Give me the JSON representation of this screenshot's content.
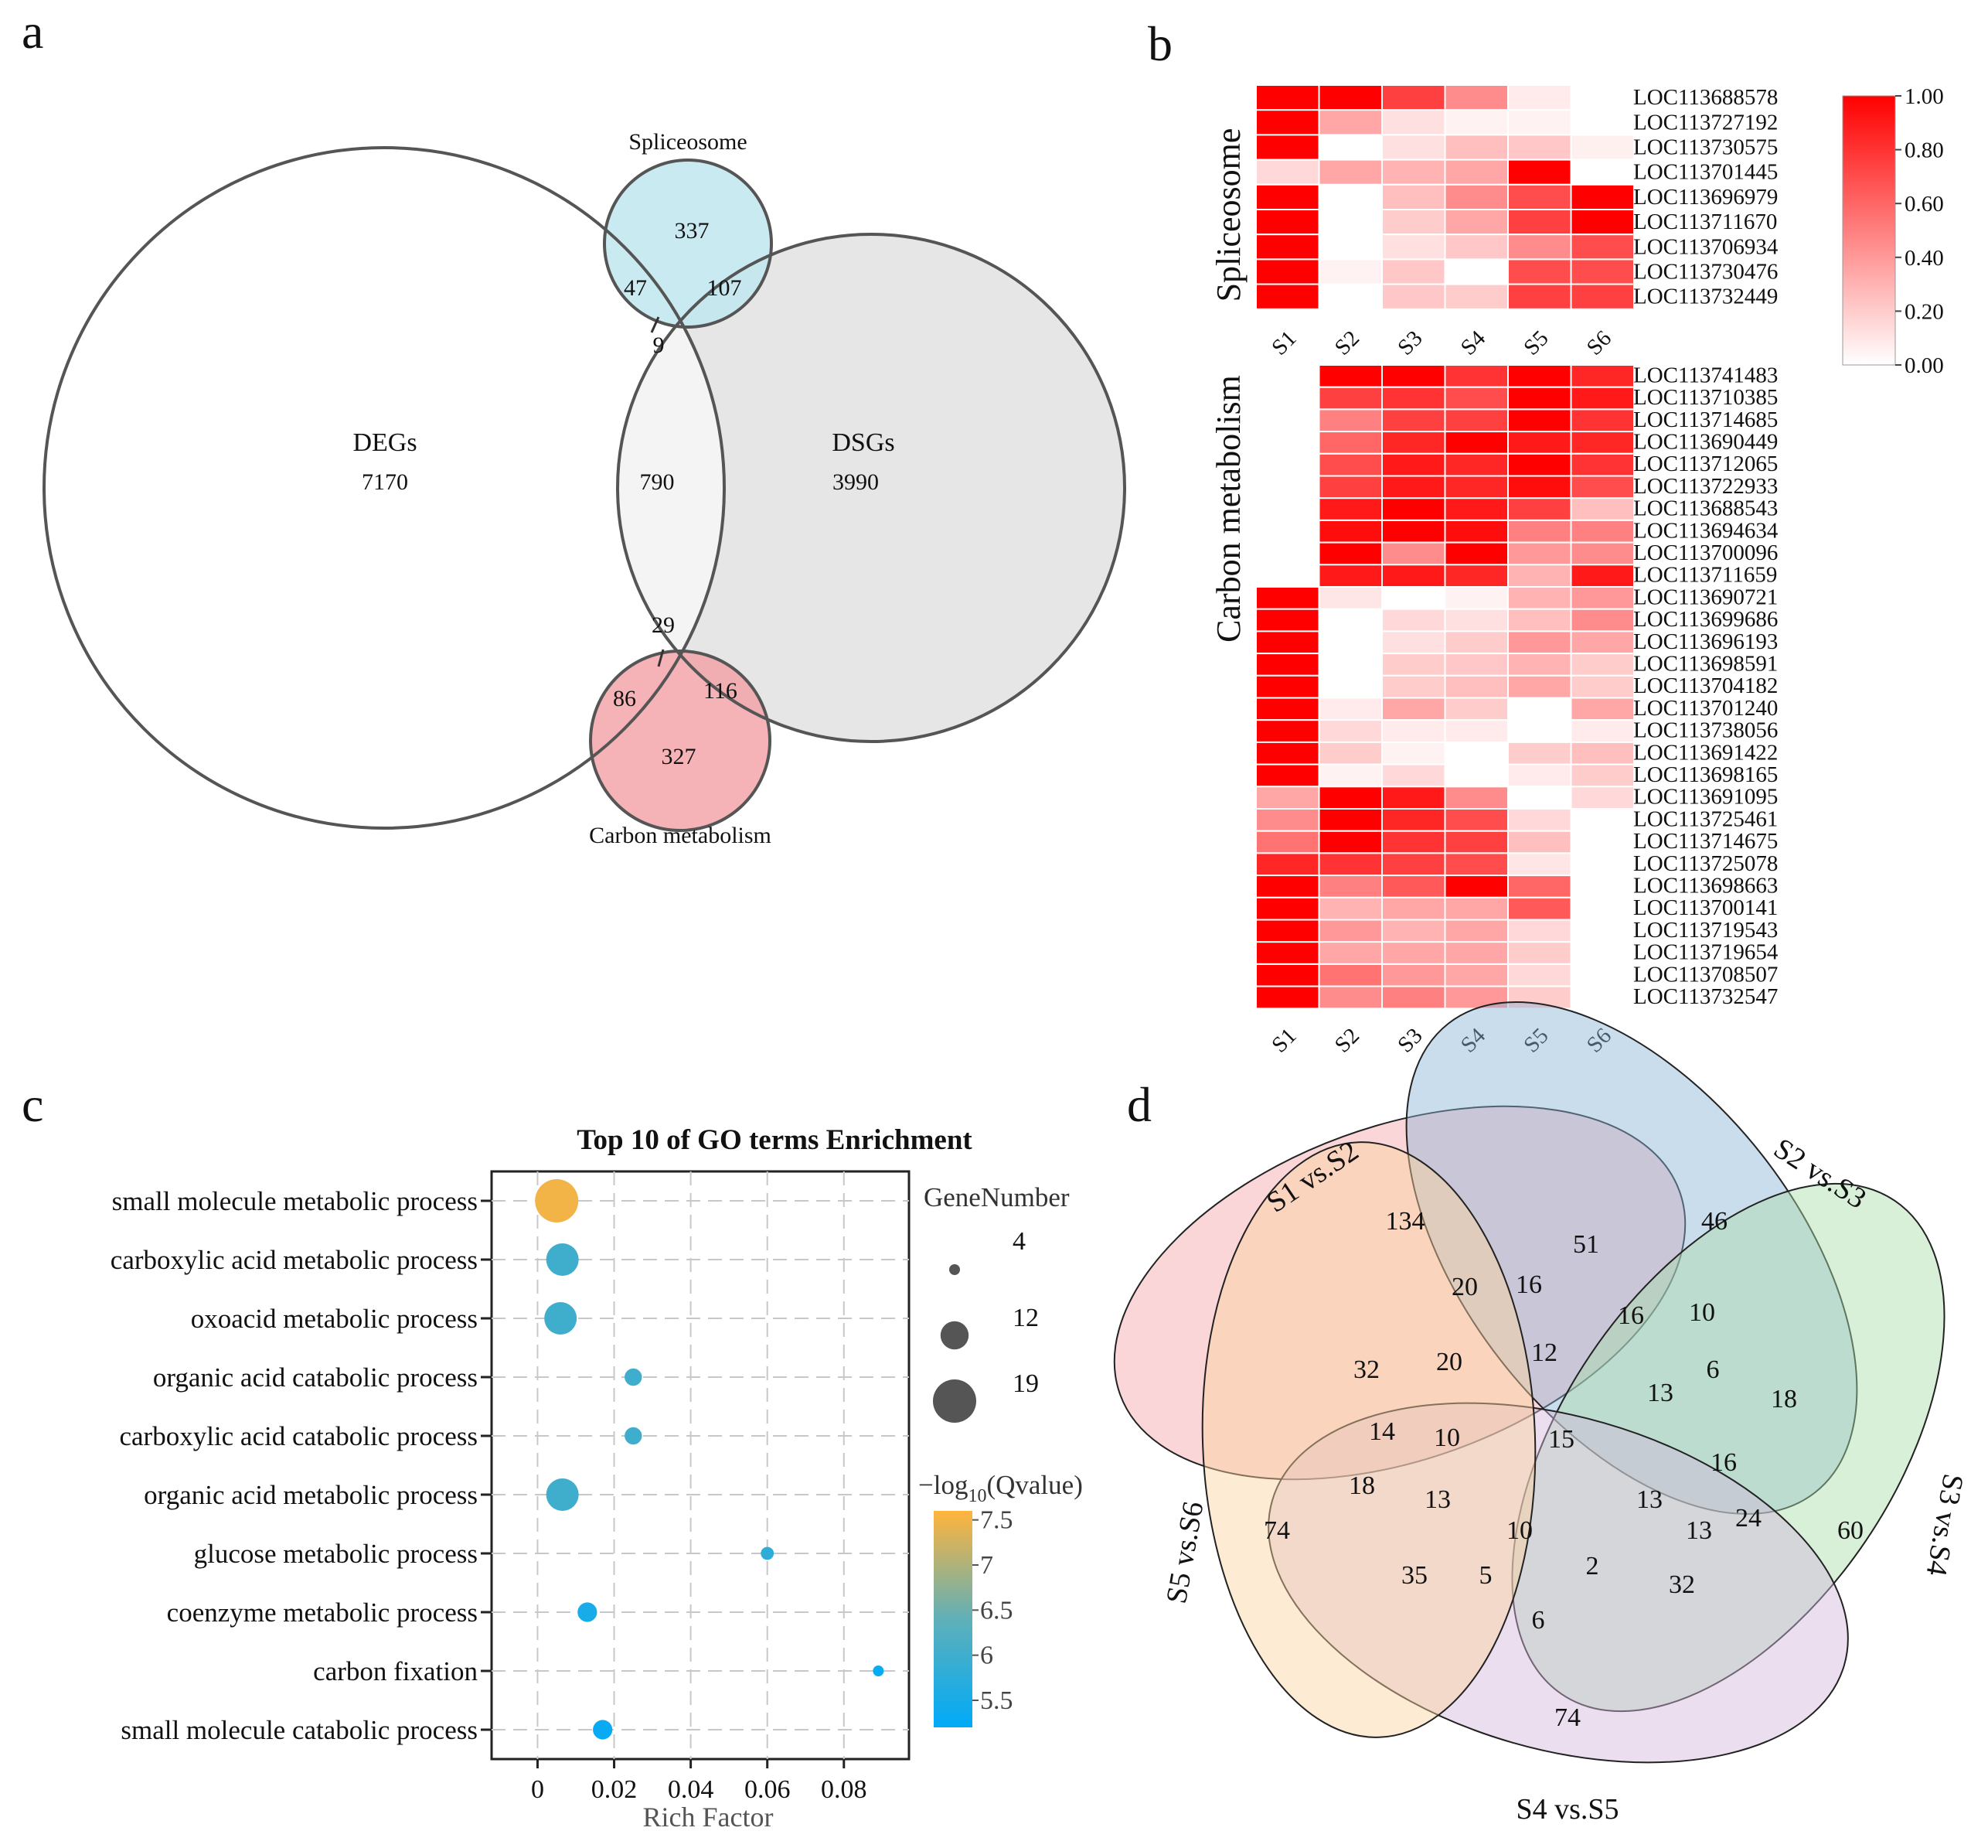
{
  "panels": {
    "a": "a",
    "b": "b",
    "c": "c",
    "d": "d"
  },
  "chart_data": [
    {
      "type": "venn",
      "panel": "a",
      "sets": [
        {
          "name": "DEGs",
          "only": "7170"
        },
        {
          "name": "DSGs",
          "only": "3990"
        },
        {
          "name": "Spliceosome",
          "only": "337"
        },
        {
          "name": "Carbon metabolism",
          "only": "327"
        }
      ],
      "intersections": {
        "DEGs_DSGs": "790",
        "DEGs_Spliceosome": "47",
        "DSGs_Spliceosome": "107",
        "DEGs_DSGs_Spliceosome": "9",
        "DEGs_Carbon": "86",
        "DSGs_Carbon": "116",
        "DEGs_DSGs_Carbon": "29"
      }
    },
    {
      "type": "heatmap",
      "panel": "b",
      "columns": [
        "S1",
        "S2",
        "S3",
        "S4",
        "S5",
        "S6"
      ],
      "colorbar": {
        "ticks": [
          "1.00",
          "0.80",
          "0.60",
          "0.40",
          "0.20",
          "0.00"
        ],
        "low": "#ffffff",
        "high": "#ff0000"
      },
      "groups": [
        {
          "name": "Spliceosome",
          "rows": [
            {
              "gene": "LOC113688578",
              "values": [
                1.0,
                1.0,
                0.75,
                0.45,
                0.08,
                0.0
              ]
            },
            {
              "gene": "LOC113727192",
              "values": [
                1.0,
                0.35,
                0.12,
                0.05,
                0.05,
                0.0
              ]
            },
            {
              "gene": "LOC113730575",
              "values": [
                1.0,
                0.0,
                0.12,
                0.25,
                0.22,
                0.06
              ]
            },
            {
              "gene": "LOC113701445",
              "values": [
                0.15,
                0.35,
                0.3,
                0.35,
                1.0,
                0.0
              ]
            },
            {
              "gene": "LOC113696979",
              "values": [
                1.0,
                0.0,
                0.25,
                0.45,
                0.7,
                1.0
              ]
            },
            {
              "gene": "LOC113711670",
              "values": [
                1.0,
                0.0,
                0.2,
                0.35,
                0.75,
                1.0
              ]
            },
            {
              "gene": "LOC113706934",
              "values": [
                1.0,
                0.0,
                0.12,
                0.22,
                0.45,
                0.7
              ]
            },
            {
              "gene": "LOC113730476",
              "values": [
                1.0,
                0.05,
                0.22,
                0.0,
                0.7,
                0.7
              ]
            },
            {
              "gene": "LOC113732449",
              "values": [
                1.0,
                0.0,
                0.22,
                0.2,
                0.75,
                0.75
              ]
            }
          ]
        },
        {
          "name": "Carbon metabolism",
          "rows": [
            {
              "gene": "LOC113741483",
              "values": [
                0.0,
                1.0,
                1.0,
                0.8,
                1.0,
                0.85
              ]
            },
            {
              "gene": "LOC113710385",
              "values": [
                0.0,
                0.75,
                0.8,
                0.7,
                1.0,
                0.9
              ]
            },
            {
              "gene": "LOC113714685",
              "values": [
                0.0,
                0.5,
                0.75,
                0.75,
                1.0,
                0.8
              ]
            },
            {
              "gene": "LOC113690449",
              "values": [
                0.0,
                0.6,
                0.85,
                1.0,
                0.9,
                0.85
              ]
            },
            {
              "gene": "LOC113712065",
              "values": [
                0.0,
                0.7,
                0.9,
                0.85,
                1.0,
                0.8
              ]
            },
            {
              "gene": "LOC113722933",
              "values": [
                0.0,
                0.75,
                0.9,
                0.85,
                0.95,
                0.7
              ]
            },
            {
              "gene": "LOC113688543",
              "values": [
                0.0,
                0.9,
                1.0,
                0.9,
                0.75,
                0.25
              ]
            },
            {
              "gene": "LOC113694634",
              "values": [
                0.0,
                0.95,
                1.0,
                0.95,
                0.5,
                0.5
              ]
            },
            {
              "gene": "LOC113700096",
              "values": [
                0.0,
                1.0,
                0.45,
                1.0,
                0.4,
                0.45
              ]
            },
            {
              "gene": "LOC113711659",
              "values": [
                0.0,
                0.9,
                0.9,
                0.85,
                0.3,
                0.9
              ]
            },
            {
              "gene": "LOC113690721",
              "values": [
                1.0,
                0.1,
                0.0,
                0.05,
                0.3,
                0.4
              ]
            },
            {
              "gene": "LOC113699686",
              "values": [
                1.0,
                0.0,
                0.15,
                0.12,
                0.25,
                0.45
              ]
            },
            {
              "gene": "LOC113696193",
              "values": [
                1.0,
                0.0,
                0.12,
                0.2,
                0.4,
                0.35
              ]
            },
            {
              "gene": "LOC113698591",
              "values": [
                1.0,
                0.0,
                0.2,
                0.22,
                0.3,
                0.2
              ]
            },
            {
              "gene": "LOC113704182",
              "values": [
                1.0,
                0.0,
                0.2,
                0.25,
                0.35,
                0.2
              ]
            },
            {
              "gene": "LOC113701240",
              "values": [
                1.0,
                0.08,
                0.35,
                0.2,
                0.0,
                0.35
              ]
            },
            {
              "gene": "LOC113738056",
              "values": [
                1.0,
                0.15,
                0.08,
                0.08,
                0.0,
                0.08
              ]
            },
            {
              "gene": "LOC113691422",
              "values": [
                1.0,
                0.2,
                0.05,
                0.0,
                0.2,
                0.25
              ]
            },
            {
              "gene": "LOC113698165",
              "values": [
                1.0,
                0.05,
                0.15,
                0.0,
                0.08,
                0.2
              ]
            },
            {
              "gene": "LOC113691095",
              "values": [
                0.35,
                1.0,
                0.9,
                0.45,
                0.0,
                0.15
              ]
            },
            {
              "gene": "LOC113725461",
              "values": [
                0.45,
                1.0,
                0.85,
                0.7,
                0.15,
                0.0
              ]
            },
            {
              "gene": "LOC113714675",
              "values": [
                0.55,
                1.0,
                0.8,
                0.75,
                0.25,
                0.0
              ]
            },
            {
              "gene": "LOC113725078",
              "values": [
                0.85,
                0.8,
                0.75,
                0.7,
                0.1,
                0.0
              ]
            },
            {
              "gene": "LOC113698663",
              "values": [
                1.0,
                0.5,
                0.65,
                1.0,
                0.6,
                0.0
              ]
            },
            {
              "gene": "LOC113700141",
              "values": [
                1.0,
                0.3,
                0.35,
                0.35,
                0.65,
                0.0
              ]
            },
            {
              "gene": "LOC113719543",
              "values": [
                1.0,
                0.4,
                0.3,
                0.35,
                0.15,
                0.0
              ]
            },
            {
              "gene": "LOC113719654",
              "values": [
                1.0,
                0.35,
                0.35,
                0.35,
                0.2,
                0.0
              ]
            },
            {
              "gene": "LOC113708507",
              "values": [
                1.0,
                0.55,
                0.4,
                0.35,
                0.15,
                0.0
              ]
            },
            {
              "gene": "LOC113732547",
              "values": [
                1.0,
                0.45,
                0.5,
                0.4,
                0.2,
                0.0
              ]
            }
          ]
        }
      ]
    },
    {
      "type": "scatter",
      "panel": "c",
      "title": "Top 10 of GO terms Enrichment",
      "xlabel": "Rich Factor",
      "xlim": [
        -0.012,
        0.097
      ],
      "xticks": [
        0,
        0.02,
        0.04,
        0.06,
        0.08
      ],
      "xtick_labels": [
        "0",
        "0.02",
        "0.04",
        "0.06",
        "0.08"
      ],
      "size_legend": {
        "title": "GeneNumber",
        "values": [
          4,
          12,
          19
        ],
        "labels": [
          "4",
          "12",
          "19"
        ]
      },
      "color_legend": {
        "title_prefix": "−log",
        "title_sub": "10",
        "title_suffix": "(Qvalue)",
        "min": 5.2,
        "max": 7.6,
        "ticks": [
          7.5,
          7,
          6.5,
          6,
          5.5
        ],
        "tick_labels": [
          "7.5",
          "7",
          "6.5",
          "6",
          "5.5"
        ]
      },
      "terms": [
        {
          "term": "small molecule metabolic process",
          "rich_factor": 0.005,
          "gene_number": 19,
          "neg_log10_q": 7.5
        },
        {
          "term": "carboxylic acid metabolic process",
          "rich_factor": 0.0065,
          "gene_number": 14,
          "neg_log10_q": 6.0
        },
        {
          "term": "oxoacid metabolic process",
          "rich_factor": 0.006,
          "gene_number": 14,
          "neg_log10_q": 6.0
        },
        {
          "term": "organic acid catabolic process",
          "rich_factor": 0.025,
          "gene_number": 7,
          "neg_log10_q": 6.0
        },
        {
          "term": "carboxylic acid catabolic process",
          "rich_factor": 0.025,
          "gene_number": 7,
          "neg_log10_q": 6.0
        },
        {
          "term": "organic acid metabolic process",
          "rich_factor": 0.0065,
          "gene_number": 14,
          "neg_log10_q": 6.0
        },
        {
          "term": "glucose metabolic process",
          "rich_factor": 0.06,
          "gene_number": 5,
          "neg_log10_q": 5.8
        },
        {
          "term": "coenzyme metabolic process",
          "rich_factor": 0.013,
          "gene_number": 8,
          "neg_log10_q": 5.5
        },
        {
          "term": "carbon fixation",
          "rich_factor": 0.089,
          "gene_number": 4,
          "neg_log10_q": 5.3
        },
        {
          "term": "small molecule catabolic process",
          "rich_factor": 0.017,
          "gene_number": 8,
          "neg_log10_q": 5.3
        }
      ]
    },
    {
      "type": "venn",
      "panel": "d",
      "sets": [
        {
          "name": "S1 vs.S2",
          "color": "#f6a3a8"
        },
        {
          "name": "S2 vs.S3",
          "color": "#8ab4d8"
        },
        {
          "name": "S3 vs.S4",
          "color": "#a8dca8"
        },
        {
          "name": "S4 vs.S5",
          "color": "#d3b8dc"
        },
        {
          "name": "S5 vs.S6",
          "color": "#fad29e"
        }
      ],
      "numbers": [
        "134",
        "46",
        "60",
        "74",
        "74",
        "51",
        "20",
        "16",
        "16",
        "10",
        "32",
        "20",
        "12",
        "6",
        "18",
        "13",
        "14",
        "10",
        "15",
        "16",
        "18",
        "13",
        "13",
        "24",
        "10",
        "13",
        "35",
        "5",
        "2",
        "32",
        "6"
      ]
    }
  ]
}
